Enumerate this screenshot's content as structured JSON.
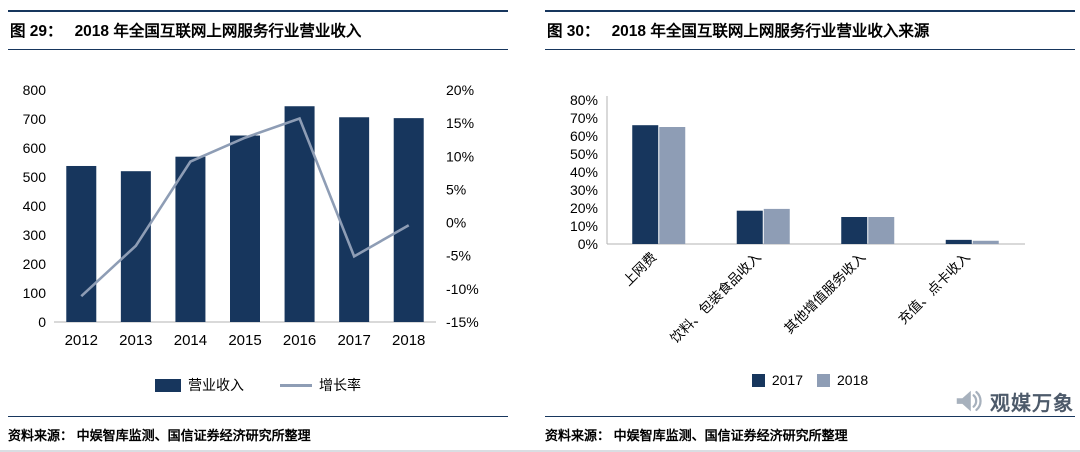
{
  "left_panel": {
    "title_prefix": "图 29：",
    "title": "2018 年全国互联网上网服务行业营业收入",
    "source": "资料来源： 中娱智库监测、国信证券经济研究所整理"
  },
  "right_panel": {
    "title_prefix": "图 30：",
    "title": "2018 年全国互联网上网服务行业营业收入来源",
    "source": "资料来源： 中娱智库监测、国信证券经济研究所整理"
  },
  "logo": {
    "text": "观媒万象"
  },
  "colors": {
    "navy": "#17365d",
    "line": "#8e9db5",
    "light": "#8e9db5",
    "axis": "#b3b3b3"
  },
  "chart_data": [
    {
      "type": "bar+line",
      "title": "2018 年全国互联网上网服务行业营业收入",
      "categories": [
        "2012",
        "2013",
        "2014",
        "2015",
        "2016",
        "2017",
        "2018"
      ],
      "series": [
        {
          "name": "营业收入",
          "type": "bar",
          "axis": "left",
          "values": [
            538,
            520,
            570,
            643,
            744,
            706,
            703
          ]
        },
        {
          "name": "增长率",
          "type": "line",
          "axis": "right",
          "values": [
            -11.1,
            -3.5,
            9.2,
            12.8,
            15.7,
            -5.1,
            -0.4
          ]
        }
      ],
      "left_axis": {
        "min": 0,
        "max": 800,
        "step": 100,
        "suffix": ""
      },
      "right_axis": {
        "min": -15,
        "max": 20,
        "step": 5,
        "suffix": "%"
      },
      "grid": false,
      "legend_position": "bottom"
    },
    {
      "type": "bar",
      "title": "2018 年全国互联网上网服务行业营业收入来源",
      "categories": [
        "上网费",
        "饮料、包装食品收入",
        "其他增值服务收入",
        "充值、点卡收入"
      ],
      "series": [
        {
          "name": "2017",
          "values": [
            66,
            18.5,
            15,
            2.3
          ]
        },
        {
          "name": "2018",
          "values": [
            65,
            19.5,
            15,
            1.8
          ]
        }
      ],
      "y_axis": {
        "min": 0,
        "max": 80,
        "step": 10,
        "suffix": "%"
      },
      "grid": false,
      "legend_position": "bottom"
    }
  ]
}
